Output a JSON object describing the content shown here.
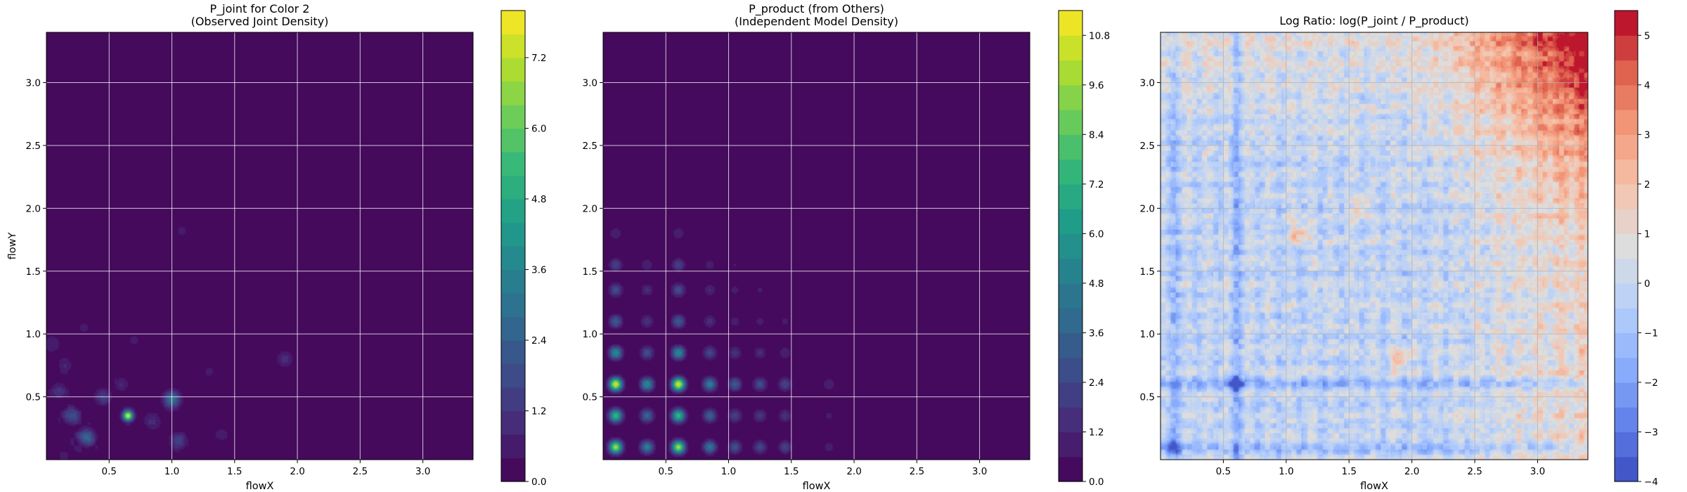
{
  "figure": {
    "panels": [
      {
        "title_line1": "P_joint for Color 2",
        "title_line2": "(Observed Joint Density)",
        "xlabel": "flowX",
        "ylabel": "flowY",
        "colormap": "viridis",
        "x_ticks": [
          "0.5",
          "1.0",
          "1.5",
          "2.0",
          "2.5",
          "3.0"
        ],
        "y_ticks": [
          "0.5",
          "1.0",
          "1.5",
          "2.0",
          "2.5",
          "3.0"
        ],
        "colorbar_ticks": [
          "0.0",
          "1.2",
          "2.4",
          "3.6",
          "4.8",
          "6.0",
          "7.2"
        ]
      },
      {
        "title_line1": "P_product (from Others)",
        "title_line2": "(Independent Model Density)",
        "xlabel": "flowX",
        "ylabel": "",
        "colormap": "viridis",
        "x_ticks": [
          "0.5",
          "1.0",
          "1.5",
          "2.0",
          "2.5",
          "3.0"
        ],
        "y_ticks": [
          "0.5",
          "1.0",
          "1.5",
          "2.0",
          "2.5",
          "3.0"
        ],
        "colorbar_ticks": [
          "0.0",
          "1.2",
          "2.4",
          "3.6",
          "4.8",
          "6.0",
          "7.2",
          "8.4",
          "9.6",
          "10.8"
        ]
      },
      {
        "title_line1": "Log Ratio: log(P_joint / P_product)",
        "title_line2": "",
        "xlabel": "flowX",
        "ylabel": "",
        "colormap": "coolwarm",
        "x_ticks": [
          "0.5",
          "1.0",
          "1.5",
          "2.0",
          "2.5",
          "3.0"
        ],
        "y_ticks": [
          "0.5",
          "1.0",
          "1.5",
          "2.0",
          "2.5",
          "3.0"
        ],
        "colorbar_ticks": [
          "−4",
          "−3",
          "−2",
          "−1",
          "0",
          "1",
          "2",
          "3",
          "4",
          "5"
        ]
      }
    ]
  },
  "chart_data": [
    {
      "type": "heatmap",
      "title": "P_joint for Color 2\n(Observed Joint Density)",
      "xlabel": "flowX",
      "ylabel": "flowY",
      "xlim": [
        0.0,
        3.4
      ],
      "ylim": [
        0.0,
        3.4
      ],
      "colorbar_range": [
        0.0,
        8.0
      ],
      "colorbar_ticks": [
        0.0,
        1.2,
        2.4,
        3.6,
        4.8,
        6.0,
        7.2
      ],
      "grid": true,
      "hotspots": [
        {
          "x": 0.65,
          "y": 0.35,
          "density": 7.8
        },
        {
          "x": 1.0,
          "y": 0.48,
          "density": 3.0
        },
        {
          "x": 0.32,
          "y": 0.18,
          "density": 2.6
        },
        {
          "x": 0.2,
          "y": 0.35,
          "density": 1.8
        },
        {
          "x": 0.45,
          "y": 0.5,
          "density": 1.4
        },
        {
          "x": 1.05,
          "y": 0.15,
          "density": 1.6
        },
        {
          "x": 0.1,
          "y": 0.55,
          "density": 1.0
        },
        {
          "x": 1.9,
          "y": 0.8,
          "density": 1.0
        },
        {
          "x": 0.05,
          "y": 0.92,
          "density": 0.8
        },
        {
          "x": 0.85,
          "y": 0.3,
          "density": 0.9
        },
        {
          "x": 0.6,
          "y": 0.6,
          "density": 0.7
        },
        {
          "x": 1.4,
          "y": 0.2,
          "density": 0.6
        },
        {
          "x": 1.08,
          "y": 1.82,
          "density": 0.5
        },
        {
          "x": 0.6,
          "y": 1.6,
          "density": 0.4
        },
        {
          "x": 0.3,
          "y": 1.05,
          "density": 0.5
        },
        {
          "x": 0.7,
          "y": 0.95,
          "density": 0.5
        },
        {
          "x": 1.3,
          "y": 0.7,
          "density": 0.5
        },
        {
          "x": 0.15,
          "y": 0.75,
          "density": 0.7
        }
      ]
    },
    {
      "type": "heatmap",
      "title": "P_product (from Others)\n(Independent Model Density)",
      "xlabel": "flowX",
      "ylabel": "",
      "xlim": [
        0.0,
        3.4
      ],
      "ylim": [
        0.0,
        3.4
      ],
      "colorbar_range": [
        0.0,
        11.4
      ],
      "colorbar_ticks": [
        0.0,
        1.2,
        2.4,
        3.6,
        4.8,
        6.0,
        7.2,
        8.4,
        9.6,
        10.8
      ],
      "grid": true,
      "marginal_x_peaks": [
        {
          "x": 0.1,
          "w": 1.0
        },
        {
          "x": 0.35,
          "w": 0.5
        },
        {
          "x": 0.6,
          "w": 1.0
        },
        {
          "x": 0.85,
          "w": 0.45
        },
        {
          "x": 1.05,
          "w": 0.3
        },
        {
          "x": 1.25,
          "w": 0.25
        },
        {
          "x": 1.45,
          "w": 0.22
        },
        {
          "x": 1.8,
          "w": 0.1
        }
      ],
      "marginal_y_peaks": [
        {
          "y": 0.1,
          "w": 0.9
        },
        {
          "y": 0.35,
          "w": 0.7
        },
        {
          "y": 0.6,
          "w": 1.0
        },
        {
          "y": 0.85,
          "w": 0.5
        },
        {
          "y": 1.1,
          "w": 0.3
        },
        {
          "y": 1.35,
          "w": 0.25
        },
        {
          "y": 1.55,
          "w": 0.2
        },
        {
          "y": 1.8,
          "w": 0.1
        }
      ],
      "peak_density": 11.0
    },
    {
      "type": "heatmap",
      "title": "Log Ratio: log(P_joint / P_product)",
      "xlabel": "flowX",
      "ylabel": "",
      "xlim": [
        0.0,
        3.4
      ],
      "ylim": [
        0.0,
        3.4
      ],
      "colorbar_range": [
        -4.0,
        5.5
      ],
      "colorbar_ticks": [
        -4,
        -3,
        -2,
        -1,
        0,
        1,
        2,
        3,
        4,
        5
      ],
      "grid": true,
      "trend": "log ratio increases toward upper-right (up to ~4.5 near flowX=3.3, flowY=3.3); mostly -1.5 to 1 elsewhere, negative stripes along flowX≈0.6 and flowY≈0.6",
      "features": [
        {
          "x": 1.1,
          "y": 1.8,
          "value": 2.5
        },
        {
          "x": 1.9,
          "y": 0.8,
          "value": 2.8
        },
        {
          "x": 1.6,
          "y": 2.0,
          "value": 1.8
        },
        {
          "x": 0.6,
          "y": 0.6,
          "value": -2.2
        },
        {
          "x": 0.1,
          "y": 0.1,
          "value": -1.8
        }
      ]
    }
  ]
}
